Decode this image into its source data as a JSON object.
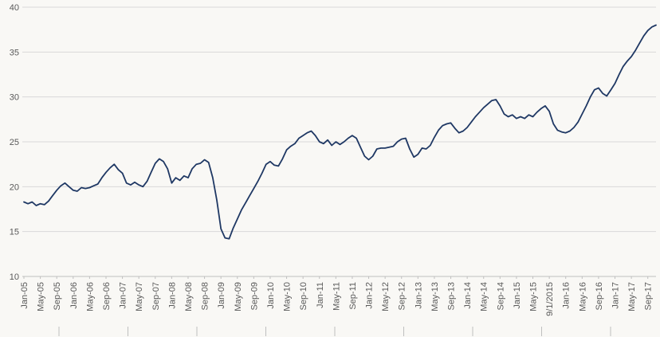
{
  "chart": {
    "background_color": "#f9f8f5",
    "line_color": "#1f3864",
    "gridline_color": "#d9d9d9",
    "axis_line_color": "#bfbfbf",
    "label_color": "#595959"
  },
  "chart_data": {
    "type": "line",
    "title": "",
    "xlabel": "",
    "ylabel": "",
    "ylim": [
      10,
      40
    ],
    "y_ticks": [
      10,
      15,
      20,
      25,
      30,
      35,
      40
    ],
    "grid": "horizontal",
    "legend": "none",
    "x_tick_interval": 4,
    "x_tick_labels": [
      "Jan-05",
      "May-05",
      "Sep-05",
      "Jan-06",
      "May-06",
      "Sep-06",
      "Jan-07",
      "May-07",
      "Sep-07",
      "Jan-08",
      "May-08",
      "Sep-08",
      "Jan-09",
      "May-09",
      "Sep-09",
      "Jan-10",
      "May-10",
      "Sep-10",
      "Jan-11",
      "May-11",
      "Sep-11",
      "Jan-12",
      "May-12",
      "Sep-12",
      "Jan-13",
      "May-13",
      "Sep-13",
      "Jan-14",
      "May-14",
      "Sep-14",
      "Jan-15",
      "May-15",
      "9/1/2015",
      "Jan-16",
      "May-16",
      "Sep-16",
      "Jan-17",
      "May-17",
      "Sep-17"
    ],
    "values": [
      18.3,
      18.1,
      18.3,
      17.9,
      18.1,
      18.0,
      18.4,
      19.0,
      19.6,
      20.1,
      20.4,
      20.0,
      19.6,
      19.5,
      19.9,
      19.8,
      19.9,
      20.1,
      20.3,
      21.0,
      21.6,
      22.1,
      22.5,
      21.9,
      21.5,
      20.4,
      20.2,
      20.5,
      20.2,
      20.0,
      20.6,
      21.6,
      22.6,
      23.1,
      22.8,
      22.0,
      20.4,
      21.0,
      20.7,
      21.2,
      21.0,
      22.0,
      22.5,
      22.6,
      23.0,
      22.7,
      21.0,
      18.5,
      15.3,
      14.3,
      14.2,
      15.4,
      16.4,
      17.4,
      18.2,
      19.0,
      19.8,
      20.6,
      21.5,
      22.5,
      22.8,
      22.4,
      22.3,
      23.1,
      24.1,
      24.5,
      24.8,
      25.4,
      25.7,
      26.0,
      26.2,
      25.7,
      25.0,
      24.8,
      25.2,
      24.6,
      25.0,
      24.7,
      25.0,
      25.4,
      25.7,
      25.4,
      24.4,
      23.4,
      23.0,
      23.4,
      24.2,
      24.3,
      24.3,
      24.4,
      24.5,
      25.0,
      25.3,
      25.4,
      24.2,
      23.3,
      23.6,
      24.3,
      24.2,
      24.6,
      25.5,
      26.3,
      26.8,
      27.0,
      27.1,
      26.5,
      26.0,
      26.2,
      26.6,
      27.2,
      27.8,
      28.3,
      28.8,
      29.2,
      29.6,
      29.7,
      29.0,
      28.1,
      27.8,
      28.0,
      27.6,
      27.8,
      27.6,
      28.0,
      27.8,
      28.3,
      28.7,
      29.0,
      28.4,
      27.0,
      26.3,
      26.1,
      26.0,
      26.2,
      26.6,
      27.2,
      28.1,
      29.0,
      30.0,
      30.8,
      31.0,
      30.4,
      30.1,
      30.8,
      31.5,
      32.5,
      33.4,
      34.0,
      34.5,
      35.2,
      36.0,
      36.8,
      37.4,
      37.8,
      38.0
    ]
  }
}
